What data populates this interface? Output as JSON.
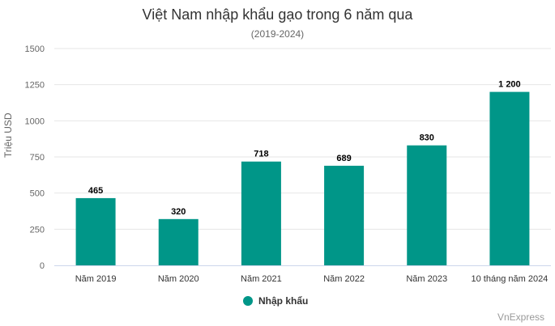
{
  "chart_data": {
    "type": "bar",
    "title": "Việt Nam nhập khẩu gạo trong 6 năm qua",
    "subtitle": "(2019-2024)",
    "ylabel": "Triệu USD",
    "categories": [
      "Năm 2019",
      "Năm 2020",
      "Năm 2021",
      "Năm 2022",
      "Năm 2023",
      "10 tháng năm 2024"
    ],
    "series": [
      {
        "name": "Nhập khẩu",
        "values": [
          465,
          320,
          718,
          689,
          830,
          1200
        ],
        "data_labels": [
          "465",
          "320",
          "718",
          "689",
          "830",
          "1 200"
        ],
        "color": "#009688"
      }
    ],
    "ylim": [
      0,
      1500
    ],
    "yticks": [
      0,
      250,
      500,
      750,
      1000,
      1250,
      1500
    ],
    "ytick_labels": [
      "0",
      "250",
      "500",
      "750",
      "1000",
      "1250",
      "1500"
    ],
    "grid": true,
    "legend_position": "bottom-center"
  },
  "credit": "VnExpress",
  "colors": {
    "bar": "#009688",
    "grid": "#e6e6e6",
    "axis": "#ccd6eb"
  }
}
